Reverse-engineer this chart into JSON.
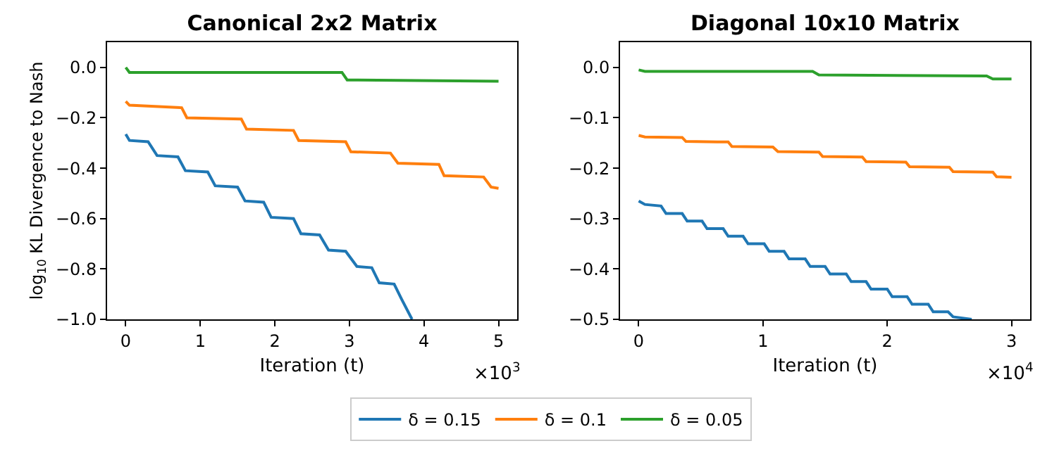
{
  "chart_data": [
    {
      "type": "line",
      "title": "Canonical 2x2 Matrix",
      "xlabel": "Iteration (t)",
      "ylabel": "log$_{10}$ KL Divergence to Nash",
      "annotations": [
        "×10$^{3}$"
      ],
      "xlim": [
        -0.25,
        5.25
      ],
      "xticks": [
        0,
        1,
        2,
        3,
        4,
        5
      ],
      "ylim": [
        -1.0,
        0.1
      ],
      "yticks": [
        {
          "value": 0,
          "label": "0.0"
        },
        {
          "value": -0.2,
          "label": "−0.2"
        },
        {
          "value": -0.4,
          "label": "−0.4"
        },
        {
          "value": -0.6,
          "label": "−0.6"
        },
        {
          "value": -0.8,
          "label": "−0.8"
        },
        {
          "value": -1.0,
          "label": "−1.0"
        }
      ],
      "grid": false,
      "legend": "bottom",
      "series": [
        {
          "name": "δ = 0.15",
          "color": "#1f77b4",
          "x": [
            0,
            0.05,
            0.3,
            0.42,
            0.7,
            0.8,
            1.1,
            1.2,
            1.5,
            1.6,
            1.85,
            1.95,
            2.25,
            2.35,
            2.6,
            2.72,
            2.95,
            3.1,
            3.3,
            3.4,
            3.6,
            3.7,
            3.84
          ],
          "values": [
            -0.265,
            -0.29,
            -0.295,
            -0.35,
            -0.355,
            -0.41,
            -0.415,
            -0.47,
            -0.475,
            -0.53,
            -0.535,
            -0.595,
            -0.6,
            -0.66,
            -0.665,
            -0.725,
            -0.73,
            -0.79,
            -0.795,
            -0.855,
            -0.86,
            -0.92,
            -1.0
          ]
        },
        {
          "name": "δ = 0.1",
          "color": "#ff7f0e",
          "x": [
            0,
            0.05,
            0.75,
            0.82,
            1.55,
            1.62,
            2.25,
            2.32,
            2.95,
            3.02,
            3.55,
            3.65,
            4.2,
            4.27,
            4.8,
            4.9,
            5.0
          ],
          "values": [
            -0.135,
            -0.15,
            -0.16,
            -0.2,
            -0.205,
            -0.245,
            -0.25,
            -0.29,
            -0.295,
            -0.335,
            -0.34,
            -0.38,
            -0.385,
            -0.43,
            -0.435,
            -0.475,
            -0.48
          ]
        },
        {
          "name": "δ = 0.05",
          "color": "#2ca02c",
          "x": [
            0,
            0.05,
            2.9,
            2.97,
            5.0
          ],
          "values": [
            0.0,
            -0.02,
            -0.02,
            -0.05,
            -0.055
          ]
        }
      ]
    },
    {
      "type": "line",
      "title": "Diagonal 10x10 Matrix",
      "xlabel": "Iteration (t)",
      "annotations": [
        "×10$^{4}$"
      ],
      "xlim": [
        -0.15,
        3.15
      ],
      "xticks": [
        0,
        1,
        2,
        3
      ],
      "ylim": [
        -0.5,
        0.05
      ],
      "yticks": [
        {
          "value": 0,
          "label": "0.0"
        },
        {
          "value": -0.1,
          "label": "−0.1"
        },
        {
          "value": -0.2,
          "label": "−0.2"
        },
        {
          "value": -0.3,
          "label": "−0.3"
        },
        {
          "value": -0.4,
          "label": "−0.4"
        },
        {
          "value": -0.5,
          "label": "−0.5"
        }
      ],
      "grid": false,
      "legend": false,
      "series": [
        {
          "color": "#1f77b4",
          "x": [
            0,
            0.05,
            0.18,
            0.22,
            0.35,
            0.39,
            0.51,
            0.55,
            0.68,
            0.72,
            0.84,
            0.88,
            1.01,
            1.05,
            1.17,
            1.21,
            1.34,
            1.38,
            1.5,
            1.54,
            1.67,
            1.71,
            1.83,
            1.87,
            2.0,
            2.04,
            2.16,
            2.2,
            2.33,
            2.37,
            2.49,
            2.53,
            2.68
          ],
          "values": [
            -0.265,
            -0.272,
            -0.275,
            -0.29,
            -0.29,
            -0.305,
            -0.305,
            -0.32,
            -0.32,
            -0.335,
            -0.335,
            -0.35,
            -0.35,
            -0.365,
            -0.365,
            -0.38,
            -0.38,
            -0.395,
            -0.395,
            -0.41,
            -0.41,
            -0.425,
            -0.425,
            -0.44,
            -0.44,
            -0.455,
            -0.455,
            -0.47,
            -0.47,
            -0.485,
            -0.485,
            -0.495,
            -0.5
          ]
        },
        {
          "color": "#ff7f0e",
          "x": [
            0,
            0.05,
            0.35,
            0.38,
            0.72,
            0.75,
            1.08,
            1.12,
            1.45,
            1.48,
            1.8,
            1.83,
            2.15,
            2.18,
            2.5,
            2.53,
            2.85,
            2.88,
            3.0
          ],
          "values": [
            -0.135,
            -0.138,
            -0.139,
            -0.147,
            -0.148,
            -0.157,
            -0.158,
            -0.167,
            -0.168,
            -0.177,
            -0.178,
            -0.187,
            -0.188,
            -0.197,
            -0.198,
            -0.207,
            -0.208,
            -0.217,
            -0.218
          ]
        },
        {
          "color": "#2ca02c",
          "x": [
            0,
            0.05,
            1.4,
            1.45,
            2.8,
            2.85,
            3.0
          ],
          "values": [
            -0.005,
            -0.008,
            -0.008,
            -0.015,
            -0.017,
            -0.023,
            -0.023
          ]
        }
      ]
    }
  ]
}
